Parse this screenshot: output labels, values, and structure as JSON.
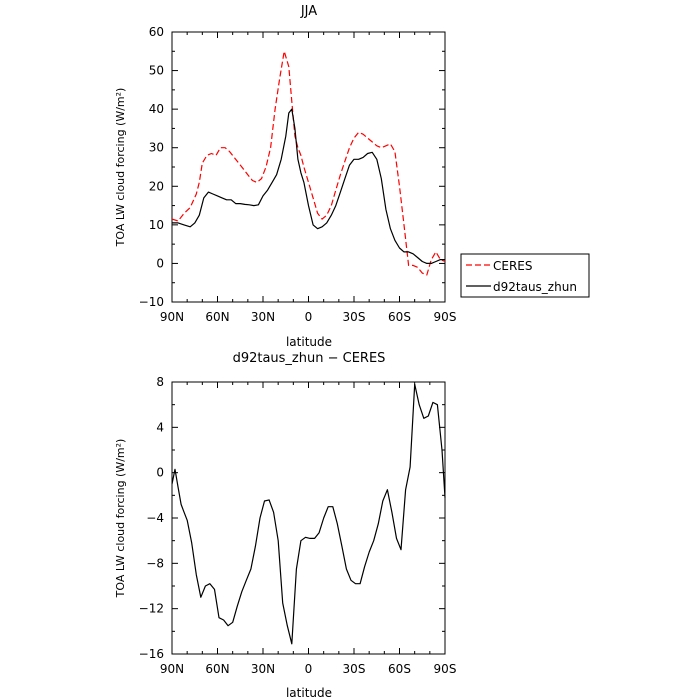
{
  "chart_data": [
    {
      "type": "line",
      "title": "JJA",
      "xlabel": "latitude",
      "ylabel": "TOA LW cloud forcing (W/m²)",
      "xlim": [
        90,
        -90
      ],
      "ylim": [
        -10,
        60
      ],
      "xticks": [
        90,
        60,
        30,
        0,
        -30,
        -60,
        -90
      ],
      "xtick_labels": [
        "90N",
        "60N",
        "30N",
        "0",
        "30S",
        "60S",
        "90S"
      ],
      "yticks": [
        -10,
        0,
        10,
        20,
        30,
        40,
        50,
        60
      ],
      "ytick_labels": [
        "−10",
        "0",
        "10",
        "20",
        "30",
        "40",
        "50",
        "60"
      ],
      "legend_position": "right",
      "series": [
        {
          "name": "CERES",
          "color": "#ff0000",
          "dash": "dashed",
          "x": [
            90,
            86,
            82,
            78,
            74,
            72,
            70,
            67,
            64,
            61,
            58,
            55,
            52,
            49,
            46,
            43,
            40,
            37,
            34,
            31,
            28,
            25,
            22,
            19,
            16,
            13,
            11,
            9,
            7,
            5,
            3,
            0,
            -3,
            -6,
            -9,
            -12,
            -15,
            -18,
            -21,
            -24,
            -27,
            -30,
            -33,
            -36,
            -39,
            -42,
            -45,
            -48,
            -51,
            -54,
            -57,
            -60,
            -63,
            -66,
            -69,
            -72,
            -75,
            -78,
            -81,
            -84,
            -87,
            -90
          ],
          "y": [
            11.5,
            11,
            13,
            14.5,
            18,
            21,
            26,
            28,
            28.5,
            28,
            30,
            30,
            29,
            27.5,
            26,
            24.5,
            23,
            21.5,
            21,
            22,
            25,
            30,
            40,
            48,
            55,
            51,
            42,
            33,
            30,
            28,
            25,
            21,
            17,
            13,
            11.5,
            12.5,
            15,
            19,
            23,
            26.5,
            30,
            32.5,
            34,
            33.5,
            32.5,
            31.5,
            30.5,
            30,
            30.5,
            31,
            29,
            20,
            10,
            -0.5,
            -0.5,
            -1,
            -2.5,
            -3,
            1,
            3,
            1,
            0.5
          ]
        },
        {
          "name": "d92taus_zhun",
          "color": "#000000",
          "dash": "solid",
          "x": [
            90,
            86,
            82,
            78,
            75,
            72,
            69,
            66,
            63,
            60,
            57,
            54,
            51,
            48,
            45,
            42,
            39,
            36,
            33,
            30,
            27,
            24,
            21,
            18,
            15,
            13,
            11,
            9,
            7,
            5,
            3,
            0,
            -3,
            -6,
            -9,
            -12,
            -15,
            -18,
            -21,
            -24,
            -27,
            -30,
            -33,
            -36,
            -39,
            -42,
            -45,
            -48,
            -51,
            -54,
            -57,
            -60,
            -63,
            -66,
            -69,
            -72,
            -75,
            -78,
            -81,
            -84,
            -87,
            -90
          ],
          "y": [
            10.5,
            10.5,
            10,
            9.5,
            10.5,
            12.5,
            17,
            18.5,
            18,
            17.5,
            17,
            16.5,
            16.5,
            15.5,
            15.5,
            15.3,
            15.2,
            15,
            15.2,
            17.5,
            19,
            21,
            23,
            27,
            33,
            39,
            40,
            35,
            27,
            23.5,
            21,
            15,
            10,
            9,
            9.5,
            10.5,
            12.5,
            15,
            18.5,
            22,
            25.5,
            27,
            27,
            27.5,
            28.5,
            28.8,
            27,
            22,
            14,
            9,
            6,
            4,
            3,
            3,
            2.5,
            1.5,
            0.5,
            0,
            0,
            0.5,
            1,
            1
          ]
        }
      ]
    },
    {
      "type": "line",
      "title": "d92taus_zhun − CERES",
      "xlabel": "latitude",
      "ylabel": "TOA LW cloud forcing (W/m²)",
      "xlim": [
        90,
        -90
      ],
      "ylim": [
        -16,
        8
      ],
      "xticks": [
        90,
        60,
        30,
        0,
        -30,
        -60,
        -90
      ],
      "xtick_labels": [
        "90N",
        "60N",
        "30N",
        "0",
        "30S",
        "60S",
        "90S"
      ],
      "yticks": [
        -16,
        -12,
        -8,
        -4,
        0,
        4,
        8
      ],
      "ytick_labels": [
        "−16",
        "−12",
        "−8",
        "−4",
        "0",
        "4",
        "8"
      ],
      "series": [
        {
          "color": "#000000",
          "dash": "solid",
          "x": [
            90,
            88,
            86,
            84,
            82,
            80,
            77,
            74,
            71,
            68,
            65,
            62,
            59,
            56,
            53,
            50,
            47,
            44,
            41,
            38,
            35,
            32,
            29,
            26,
            23,
            20,
            17,
            14,
            11,
            8,
            5,
            2,
            -1,
            -4,
            -7,
            -10,
            -13,
            -16,
            -19,
            -22,
            -25,
            -28,
            -31,
            -34,
            -37,
            -40,
            -43,
            -46,
            -49,
            -52,
            -55,
            -58,
            -61,
            -64,
            -67,
            -70,
            -73,
            -76,
            -79,
            -82,
            -85,
            -88,
            -90
          ],
          "y": [
            -1,
            0.3,
            -1.3,
            -2.8,
            -3.5,
            -4.2,
            -6.2,
            -9,
            -11,
            -10,
            -9.8,
            -10.3,
            -12.8,
            -13,
            -13.5,
            -13.2,
            -11.8,
            -10.5,
            -9.5,
            -8.5,
            -6.5,
            -4,
            -2.5,
            -2.4,
            -3.5,
            -6,
            -11.5,
            -13.5,
            -15.1,
            -8.5,
            -6,
            -5.7,
            -5.8,
            -5.8,
            -5.3,
            -4,
            -3,
            -3,
            -4.5,
            -6.5,
            -8.5,
            -9.5,
            -9.8,
            -9.8,
            -8.3,
            -7,
            -6,
            -4.5,
            -2.5,
            -1.5,
            -3.5,
            -5.8,
            -6.8,
            -1.5,
            0.5,
            7.8,
            6,
            4.8,
            5,
            6.2,
            6,
            2,
            -2.2
          ]
        }
      ]
    }
  ]
}
